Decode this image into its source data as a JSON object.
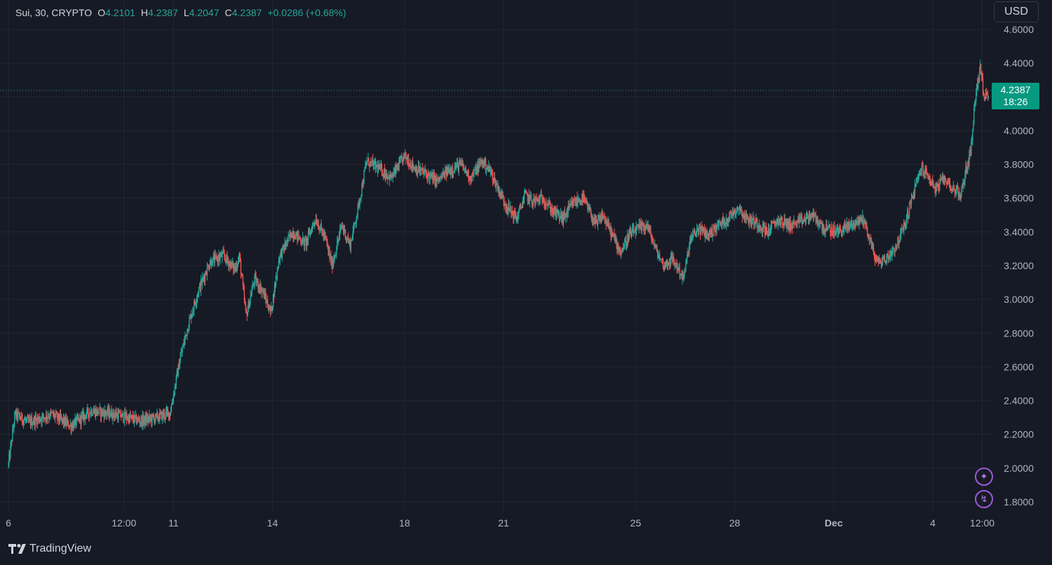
{
  "legend": {
    "symbol": "Sui, 30, CRYPTO",
    "o_label": "O",
    "o_value": "4.2101",
    "h_label": "H",
    "h_value": "4.2387",
    "l_label": "L",
    "l_value": "4.2047",
    "c_label": "C",
    "c_value": "4.2387",
    "change": "+0.0286 (+0.68%)"
  },
  "currency_button": "USD",
  "last_price": {
    "price": "4.2387",
    "countdown": "18:26"
  },
  "branding": {
    "name": "TradingView"
  },
  "side_icons": [
    "sparkle-icon",
    "lightning-icon"
  ],
  "colors": {
    "up": "#26a69a",
    "down": "#ef5350",
    "background": "#161a25",
    "grid": "#232733",
    "price_tag": "#089981",
    "accent_icon": "#9c5bd8"
  },
  "chart_data": {
    "type": "candlestick",
    "title": "",
    "symbol": "Sui",
    "interval": "30",
    "exchange": "CRYPTO",
    "currency": "USD",
    "ylim": [
      1.8,
      4.6
    ],
    "y_ticks": [
      "4.6000",
      "4.4000",
      "4.2000",
      "4.0000",
      "3.8000",
      "3.6000",
      "3.4000",
      "3.2000",
      "3.0000",
      "2.8000",
      "2.6000",
      "2.4000",
      "2.2000",
      "2.0000",
      "1.8000"
    ],
    "x_ticks": [
      "6",
      "12:00",
      "11",
      "14",
      "18",
      "21",
      "25",
      "28",
      "Dec",
      "4",
      "12:00"
    ],
    "x_tick_days": [
      6,
      9.5,
      11,
      14,
      18,
      21,
      25,
      28,
      31,
      34,
      35.5
    ],
    "x_range_days": [
      6,
      35.7
    ],
    "grid": true,
    "legend_position": "top-left",
    "approx_close_path": [
      [
        6.0,
        2.02
      ],
      [
        6.2,
        2.32
      ],
      [
        6.6,
        2.27
      ],
      [
        7.3,
        2.32
      ],
      [
        7.9,
        2.25
      ],
      [
        8.5,
        2.34
      ],
      [
        9.2,
        2.32
      ],
      [
        10.0,
        2.28
      ],
      [
        10.5,
        2.3
      ],
      [
        10.9,
        2.33
      ],
      [
        11.2,
        2.65
      ],
      [
        11.45,
        2.85
      ],
      [
        11.75,
        3.05
      ],
      [
        12.1,
        3.22
      ],
      [
        12.5,
        3.26
      ],
      [
        12.85,
        3.18
      ],
      [
        13.0,
        3.25
      ],
      [
        13.2,
        2.9
      ],
      [
        13.45,
        3.12
      ],
      [
        13.7,
        3.05
      ],
      [
        13.95,
        2.92
      ],
      [
        14.2,
        3.25
      ],
      [
        14.6,
        3.4
      ],
      [
        15.0,
        3.33
      ],
      [
        15.3,
        3.48
      ],
      [
        15.6,
        3.36
      ],
      [
        15.8,
        3.2
      ],
      [
        16.1,
        3.44
      ],
      [
        16.35,
        3.32
      ],
      [
        16.6,
        3.55
      ],
      [
        16.85,
        3.82
      ],
      [
        17.2,
        3.78
      ],
      [
        17.6,
        3.72
      ],
      [
        18.0,
        3.85
      ],
      [
        18.3,
        3.78
      ],
      [
        18.6,
        3.75
      ],
      [
        19.0,
        3.7
      ],
      [
        19.3,
        3.76
      ],
      [
        19.7,
        3.8
      ],
      [
        20.0,
        3.72
      ],
      [
        20.35,
        3.82
      ],
      [
        20.6,
        3.76
      ],
      [
        20.85,
        3.65
      ],
      [
        21.1,
        3.55
      ],
      [
        21.4,
        3.48
      ],
      [
        21.65,
        3.62
      ],
      [
        21.9,
        3.58
      ],
      [
        22.2,
        3.6
      ],
      [
        22.5,
        3.52
      ],
      [
        22.8,
        3.48
      ],
      [
        23.1,
        3.57
      ],
      [
        23.4,
        3.6
      ],
      [
        23.6,
        3.52
      ],
      [
        23.8,
        3.44
      ],
      [
        24.0,
        3.5
      ],
      [
        24.3,
        3.38
      ],
      [
        24.55,
        3.28
      ],
      [
        24.8,
        3.38
      ],
      [
        25.1,
        3.42
      ],
      [
        25.35,
        3.44
      ],
      [
        25.6,
        3.3
      ],
      [
        25.85,
        3.2
      ],
      [
        26.1,
        3.24
      ],
      [
        26.3,
        3.18
      ],
      [
        26.45,
        3.12
      ],
      [
        26.65,
        3.35
      ],
      [
        26.9,
        3.42
      ],
      [
        27.2,
        3.38
      ],
      [
        27.5,
        3.44
      ],
      [
        27.8,
        3.48
      ],
      [
        28.1,
        3.55
      ],
      [
        28.35,
        3.48
      ],
      [
        28.7,
        3.45
      ],
      [
        29.0,
        3.4
      ],
      [
        29.3,
        3.47
      ],
      [
        29.7,
        3.44
      ],
      [
        30.0,
        3.46
      ],
      [
        30.35,
        3.5
      ],
      [
        30.7,
        3.42
      ],
      [
        31.1,
        3.4
      ],
      [
        31.5,
        3.44
      ],
      [
        31.9,
        3.48
      ],
      [
        32.1,
        3.35
      ],
      [
        32.3,
        3.22
      ],
      [
        32.6,
        3.24
      ],
      [
        32.9,
        3.32
      ],
      [
        33.15,
        3.44
      ],
      [
        33.4,
        3.62
      ],
      [
        33.65,
        3.78
      ],
      [
        33.9,
        3.72
      ],
      [
        34.1,
        3.65
      ],
      [
        34.35,
        3.72
      ],
      [
        34.6,
        3.66
      ],
      [
        34.85,
        3.62
      ],
      [
        35.0,
        3.76
      ],
      [
        35.15,
        3.88
      ],
      [
        35.3,
        4.22
      ],
      [
        35.45,
        4.38
      ],
      [
        35.55,
        4.18
      ],
      [
        35.7,
        4.24
      ]
    ],
    "last_values": {
      "open": 4.2101,
      "high": 4.2387,
      "low": 4.2047,
      "close": 4.2387,
      "change": 0.0286,
      "change_pct": 0.68
    }
  }
}
